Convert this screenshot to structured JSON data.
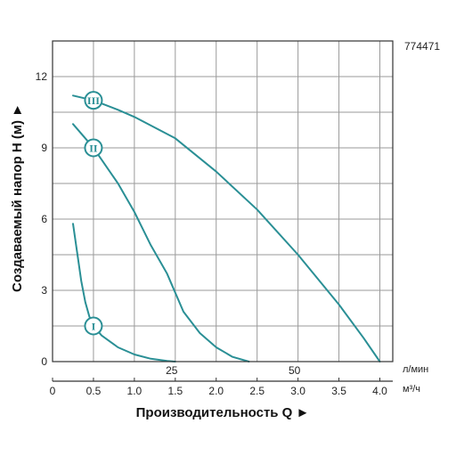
{
  "model_number": "774471",
  "chart_data": {
    "type": "line",
    "title": "",
    "xlabel": "Производительность Q ►",
    "ylabel": "Создаваемый напор H (м) ►",
    "x_unit_label": "м³/ч",
    "secondary_x_unit_label": "л/мин",
    "xlim": [
      0,
      4.2
    ],
    "ylim": [
      0,
      13.5
    ],
    "x_ticks": [
      "0",
      "0.5",
      "1.0",
      "1.5",
      "2.0",
      "2.5",
      "3.0",
      "3.5",
      "4.0"
    ],
    "x_tick_values": [
      0,
      0.5,
      1.0,
      1.5,
      2.0,
      2.5,
      3.0,
      3.5,
      4.0
    ],
    "secondary_x_ticks": [
      {
        "label": "25",
        "value": 1.5
      },
      {
        "label": "50",
        "value": 3.0
      }
    ],
    "y_ticks": [
      "0",
      "3",
      "6",
      "9",
      "12"
    ],
    "y_tick_values": [
      0,
      3,
      6,
      9,
      12
    ],
    "grid": true,
    "line_color": "#2a8f95",
    "series": [
      {
        "name": "I",
        "marker": {
          "x": 0.5,
          "y": 1.5
        },
        "x": [
          0.25,
          0.3,
          0.35,
          0.4,
          0.45,
          0.5,
          0.6,
          0.8,
          1.0,
          1.2,
          1.4,
          1.5
        ],
        "y": [
          5.8,
          4.6,
          3.4,
          2.5,
          1.9,
          1.5,
          1.1,
          0.6,
          0.3,
          0.12,
          0.03,
          0.0
        ]
      },
      {
        "name": "II",
        "marker": {
          "x": 0.5,
          "y": 9.0
        },
        "x": [
          0.25,
          0.4,
          0.5,
          0.6,
          0.8,
          1.0,
          1.2,
          1.4,
          1.5,
          1.6,
          1.8,
          2.0,
          2.2,
          2.4
        ],
        "y": [
          10.0,
          9.4,
          9.0,
          8.5,
          7.5,
          6.3,
          4.9,
          3.7,
          2.9,
          2.1,
          1.2,
          0.6,
          0.2,
          0.0
        ]
      },
      {
        "name": "III",
        "marker": {
          "x": 0.5,
          "y": 11.0
        },
        "x": [
          0.25,
          0.5,
          0.8,
          1.0,
          1.5,
          2.0,
          2.5,
          3.0,
          3.5,
          3.8,
          4.0
        ],
        "y": [
          11.2,
          11.0,
          10.6,
          10.3,
          9.4,
          8.0,
          6.4,
          4.5,
          2.4,
          1.0,
          0.0
        ]
      }
    ]
  }
}
